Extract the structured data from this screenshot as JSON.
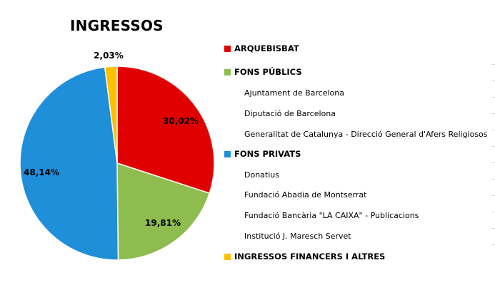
{
  "chart_data": {
    "type": "pie",
    "title": "INGRESSOS",
    "slices": [
      {
        "label": "ARQUEBISBAT",
        "value": 30.02,
        "value_label": "30,02%",
        "color": "#e00000"
      },
      {
        "label": "FONS PÚBLICS",
        "value": 19.81,
        "value_label": "19,81%",
        "color": "#8fbc4f"
      },
      {
        "label": "FONS PRIVATS",
        "value": 48.14,
        "value_label": "48,14%",
        "color": "#1f8fda"
      },
      {
        "label": "INGRESSOS FINANCERS I ALTRES",
        "value": 2.03,
        "value_label": "2,03%",
        "color": "#ffc000"
      }
    ],
    "legend": {
      "placement": "right",
      "entries": [
        {
          "label": "ARQUEBISBAT",
          "kind": "main",
          "color": "#e00000"
        },
        {
          "label": "FONS PÚBLICS",
          "kind": "main",
          "color": "#8fbc4f"
        },
        {
          "label": "Ajuntament de Barcelona",
          "kind": "sub"
        },
        {
          "label": "Diputació de Barcelona",
          "kind": "sub"
        },
        {
          "label": "Generalitat de Catalunya - Direcció General d'Afers Religiosos",
          "kind": "sub"
        },
        {
          "label": "FONS PRIVATS",
          "kind": "main",
          "color": "#1f8fda"
        },
        {
          "label": "Donatius",
          "kind": "sub"
        },
        {
          "label": "Fundació Abadia de Montserrat",
          "kind": "sub"
        },
        {
          "label": "Fundació Bancària \"LA CAIXA\" - Publicacions",
          "kind": "sub"
        },
        {
          "label": "Institució J. Maresch Servet",
          "kind": "sub"
        },
        {
          "label": "INGRESSOS FINANCERS I ALTRES",
          "kind": "main",
          "color": "#ffc000"
        }
      ]
    }
  }
}
